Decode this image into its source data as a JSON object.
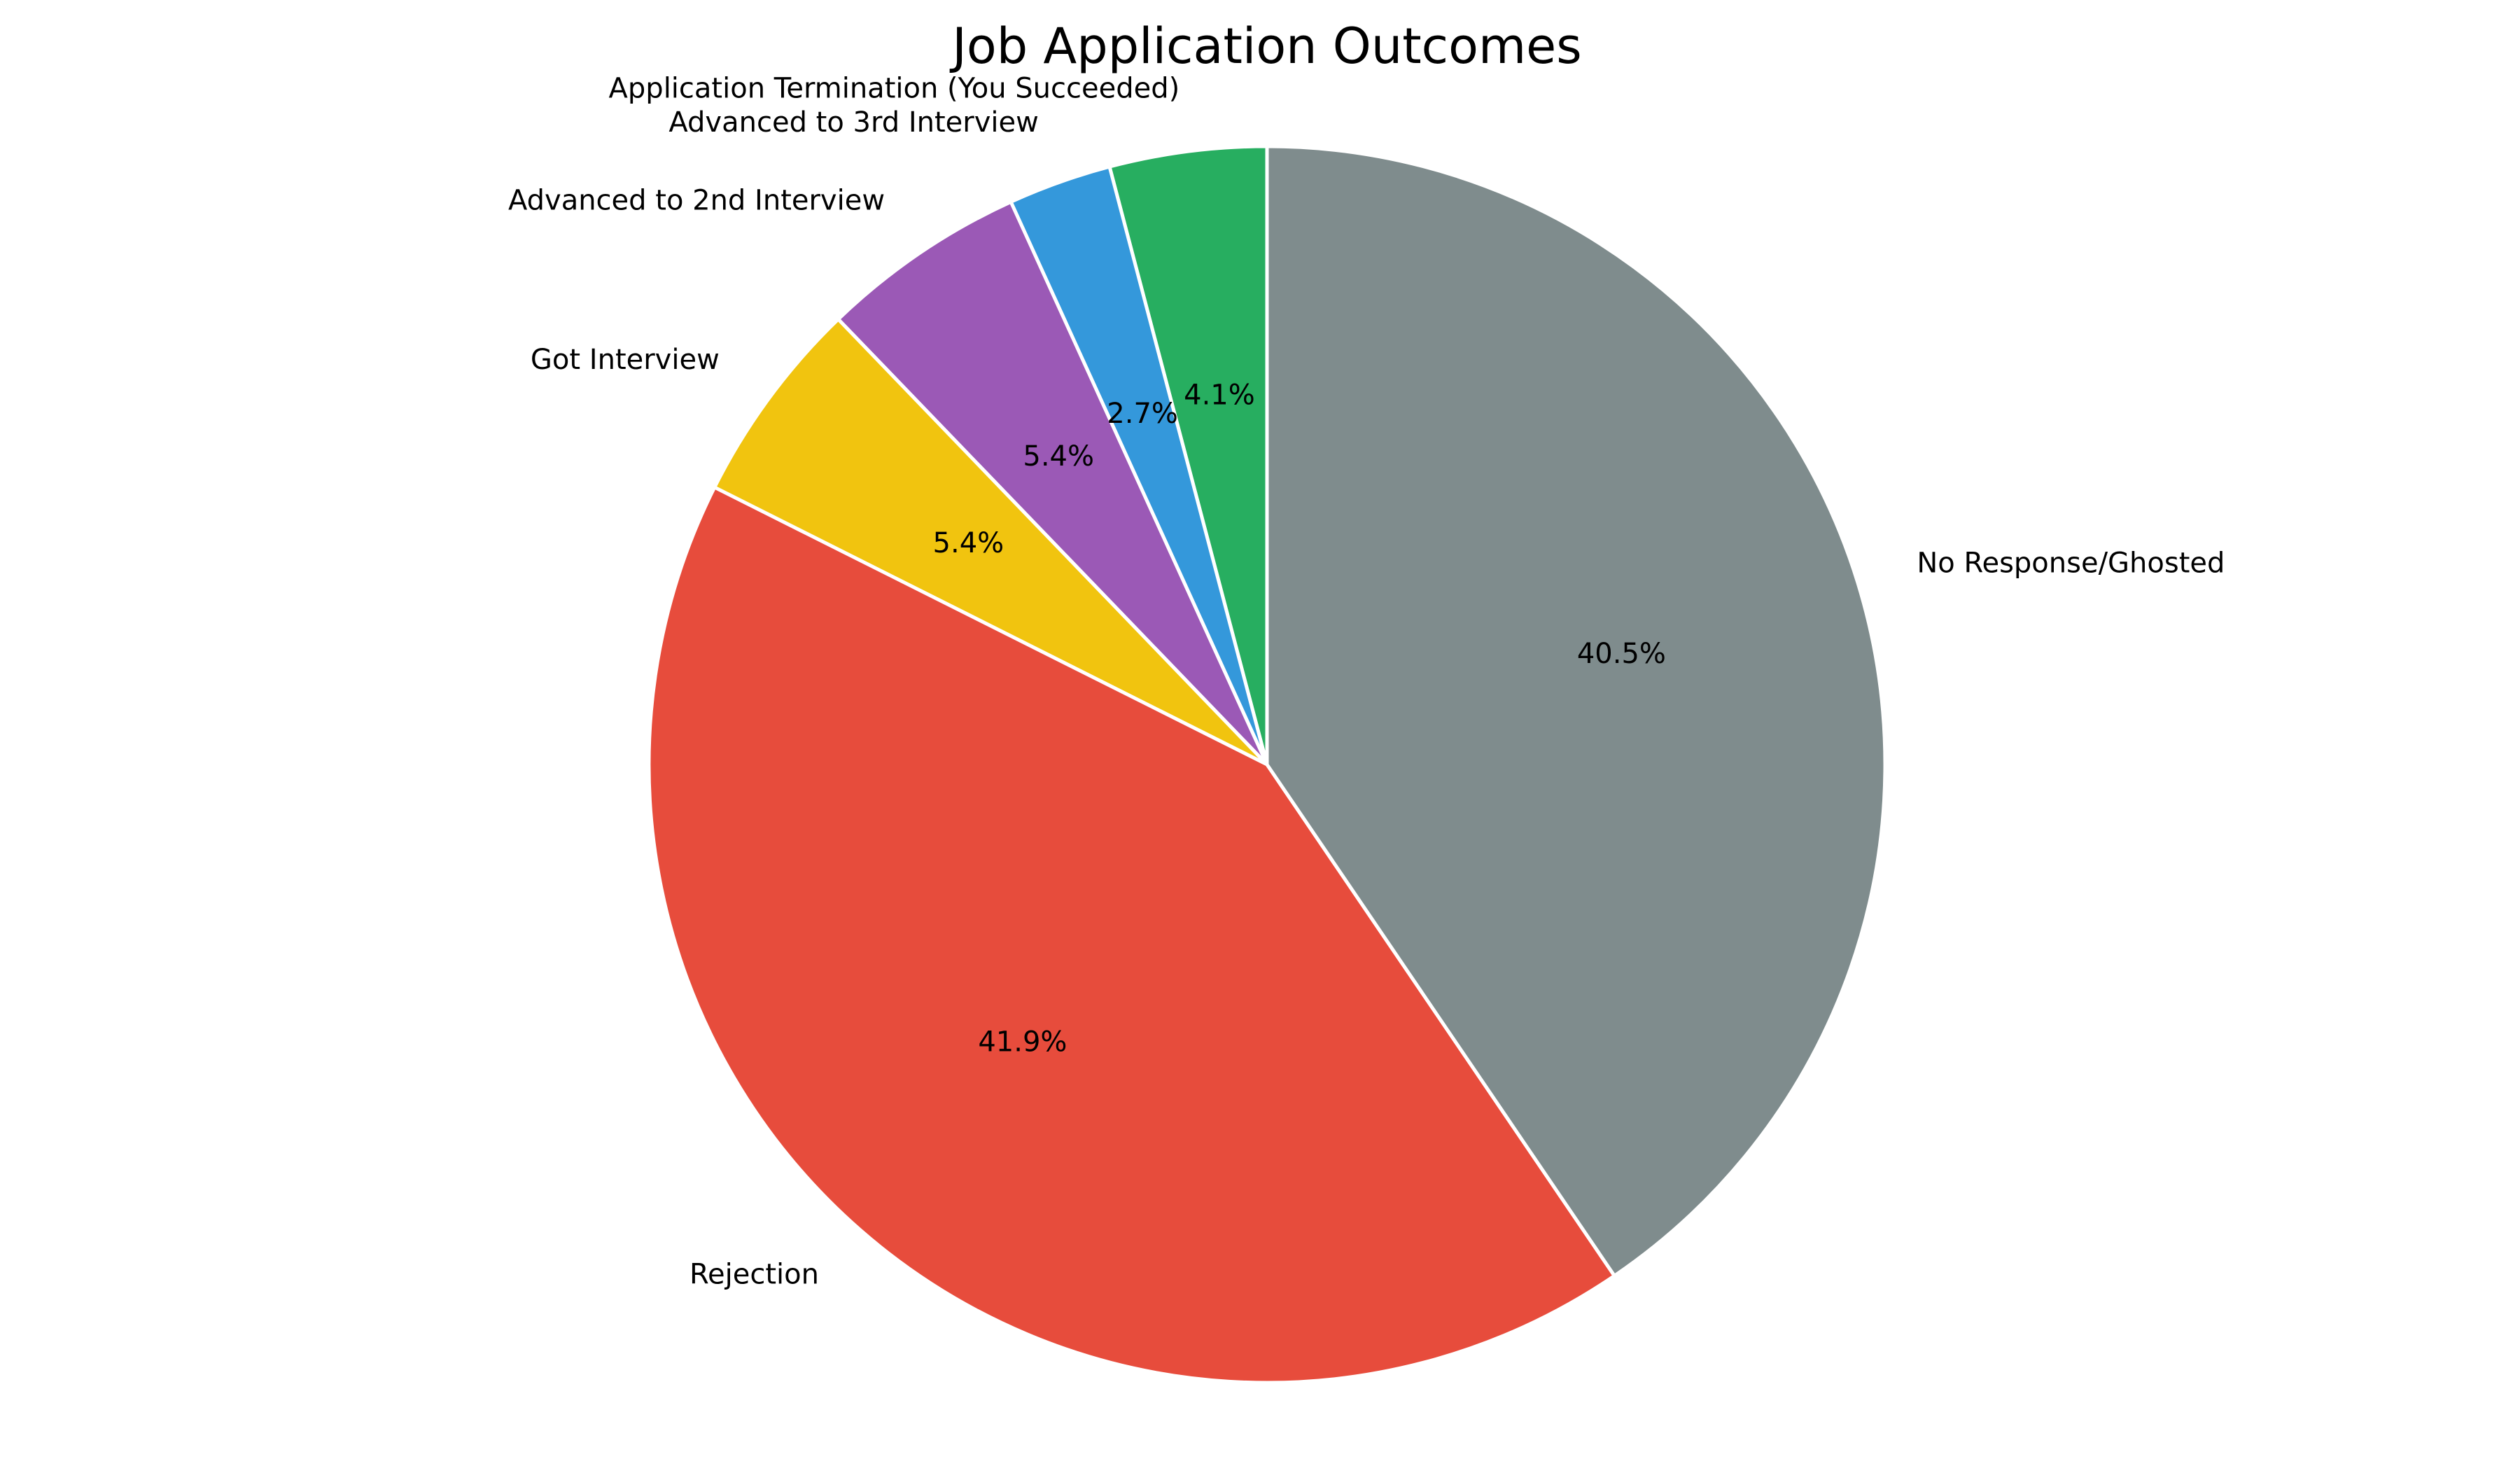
{
  "chart_data": {
    "type": "pie",
    "title": "Job Application Outcomes",
    "start_angle_deg": 90,
    "direction": "counterclockwise",
    "slices": [
      {
        "label": "Application Termination (You Succeeded)",
        "value": 4.1,
        "pct_label": "4.1%",
        "color": "#27ae60"
      },
      {
        "label": "Advanced to 3rd Interview",
        "value": 2.7,
        "pct_label": "2.7%",
        "color": "#3498db"
      },
      {
        "label": "Advanced to 2nd Interview",
        "value": 5.4,
        "pct_label": "5.4%",
        "color": "#9b59b6"
      },
      {
        "label": "Got Interview",
        "value": 5.4,
        "pct_label": "5.4%",
        "color": "#f1c40f"
      },
      {
        "label": "Rejection",
        "value": 41.9,
        "pct_label": "41.9%",
        "color": "#e74c3c"
      },
      {
        "label": "No Response/Ghosted",
        "value": 40.5,
        "pct_label": "40.5%",
        "color": "#7f8c8d"
      }
    ],
    "edge_color": "#ffffff"
  }
}
